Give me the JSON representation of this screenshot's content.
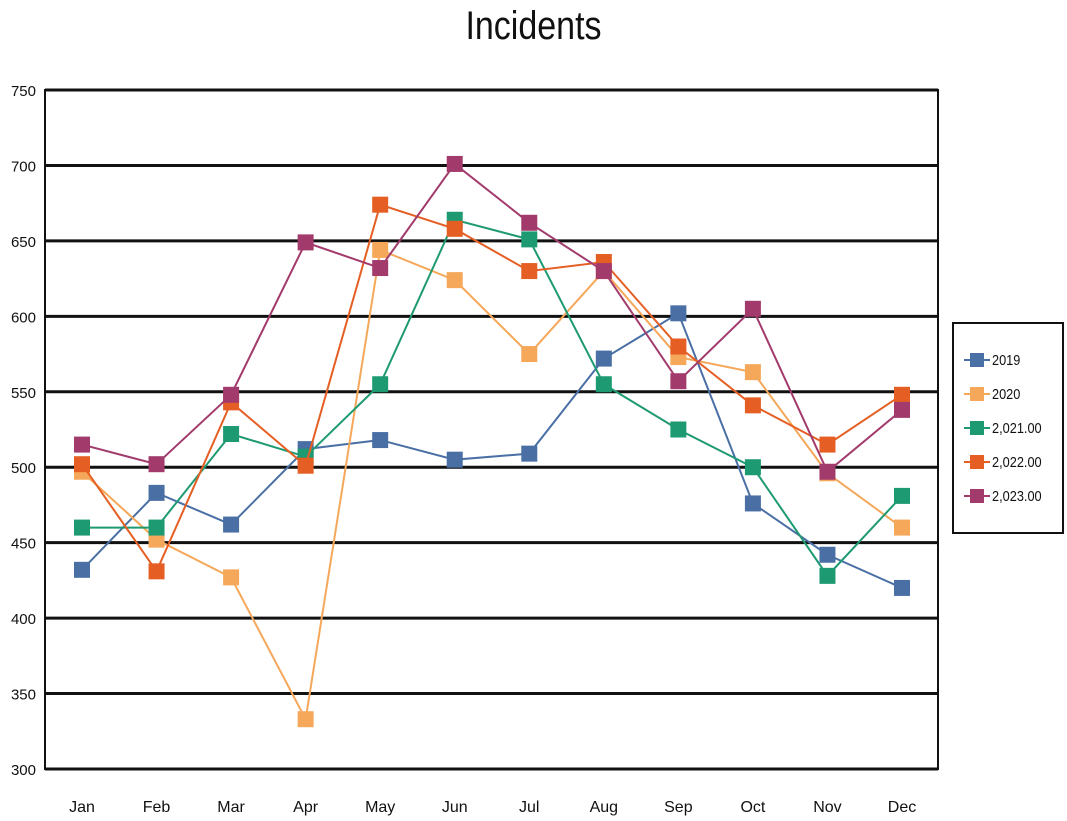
{
  "chart_data": {
    "type": "line",
    "title": "Incidents",
    "xlabel": "",
    "ylabel": "",
    "categories": [
      "Jan",
      "Feb",
      "Mar",
      "Apr",
      "May",
      "Jun",
      "Jul",
      "Aug",
      "Sep",
      "Oct",
      "Nov",
      "Dec"
    ],
    "ylim": [
      300,
      750
    ],
    "yticks": [
      "750",
      "700",
      "650",
      "600",
      "550",
      "500",
      "450",
      "400",
      "350",
      "300"
    ],
    "grid": true,
    "legend_position": "right",
    "series": [
      {
        "name": "2019",
        "color": "#4a6fa5",
        "values": [
          432,
          483,
          462,
          512,
          518,
          505,
          509,
          572,
          602,
          476,
          442,
          420
        ]
      },
      {
        "name": "2020",
        "color": "#f5a85a",
        "values": [
          497,
          452,
          427,
          333,
          644,
          624,
          575,
          630,
          573,
          563,
          496,
          460
        ]
      },
      {
        "name": "2,021.00",
        "color": "#1e9a72",
        "values": [
          460,
          460,
          522,
          507,
          555,
          664,
          651,
          555,
          525,
          500,
          428,
          481
        ]
      },
      {
        "name": "2,022.00",
        "color": "#e55f24",
        "values": [
          502,
          431,
          543,
          501,
          674,
          658,
          630,
          636,
          580,
          541,
          515,
          548
        ]
      },
      {
        "name": "2,023.00",
        "color": "#a23a6c",
        "values": [
          515,
          502,
          548,
          649,
          632,
          701,
          662,
          630,
          557,
          605,
          497,
          538
        ]
      }
    ]
  }
}
